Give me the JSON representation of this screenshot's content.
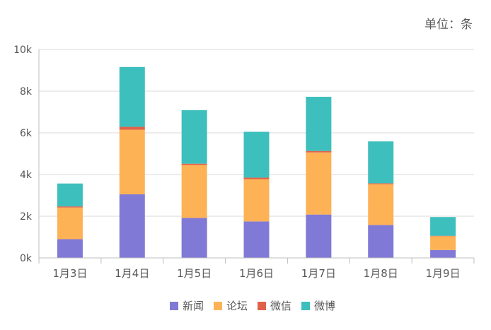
{
  "unit_note": "单位：条",
  "chart_data": {
    "type": "bar",
    "stacked": true,
    "categories": [
      "1月3日",
      "1月4日",
      "1月5日",
      "1月6日",
      "1月7日",
      "1月8日",
      "1月9日"
    ],
    "y_ticks": [
      "0k",
      "2k",
      "4k",
      "6k",
      "8k",
      "10k"
    ],
    "ylim": [
      0,
      10000
    ],
    "grid": true,
    "legend_position": "bottom",
    "series": [
      {
        "name": "新闻",
        "color": "#8079d6",
        "values": [
          900,
          3050,
          1920,
          1750,
          2080,
          1580,
          380
        ]
      },
      {
        "name": "论坛",
        "color": "#fdb256",
        "values": [
          1520,
          3100,
          2540,
          2030,
          2980,
          1960,
          660
        ]
      },
      {
        "name": "微信",
        "color": "#e0614a",
        "values": [
          50,
          140,
          60,
          70,
          70,
          40,
          20
        ]
      },
      {
        "name": "微博",
        "color": "#3dbfbd",
        "values": [
          1100,
          2870,
          2570,
          2200,
          2600,
          2010,
          900
        ]
      }
    ]
  }
}
